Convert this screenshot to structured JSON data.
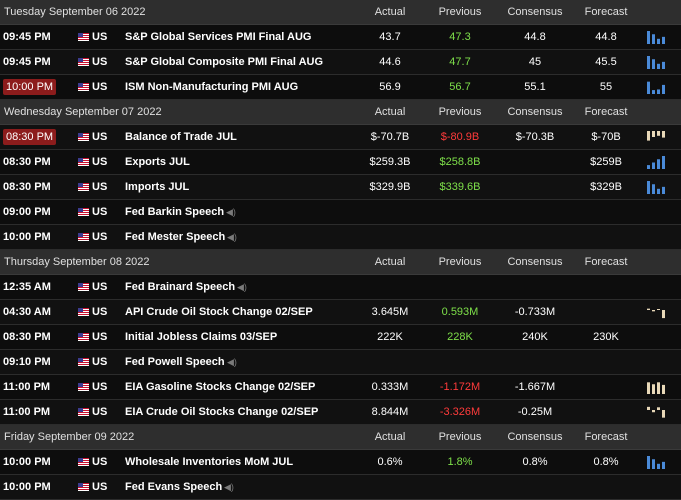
{
  "colors": {
    "header_bg": "#2e2e2e",
    "positive": "#7ee04a",
    "negative": "#ff3b3b",
    "highlight_time": "#8c1c1c",
    "bar_blue": "#4a8ad8",
    "bar_beige": "#e8d8b8"
  },
  "columns": {
    "actual": "Actual",
    "previous": "Previous",
    "consensus": "Consensus",
    "forecast": "Forecast"
  },
  "sections": [
    {
      "date": "Tuesday September 06 2022",
      "events": [
        {
          "time": "09:45 PM",
          "country": "US",
          "event": "S&P Global Services PMI Final AUG",
          "actual": "43.7",
          "previous": "47.3",
          "previous_color": "green",
          "consensus": "44.8",
          "forecast": "44.8",
          "chart": "blue-down",
          "speech": false,
          "highlight": false
        },
        {
          "time": "09:45 PM",
          "country": "US",
          "event": "S&P Global Composite PMI Final AUG",
          "actual": "44.6",
          "previous": "47.7",
          "previous_color": "green",
          "consensus": "45",
          "forecast": "45.5",
          "chart": "blue-down",
          "speech": false,
          "highlight": false
        },
        {
          "time": "10:00 PM",
          "country": "US",
          "event": "ISM Non-Manufacturing PMI AUG",
          "actual": "56.9",
          "previous": "56.7",
          "previous_color": "green",
          "consensus": "55.1",
          "forecast": "55",
          "chart": "blue-mixed",
          "speech": false,
          "highlight": true
        }
      ]
    },
    {
      "date": "Wednesday September 07 2022",
      "events": [
        {
          "time": "08:30 PM",
          "country": "US",
          "event": "Balance of Trade JUL",
          "actual": "$-70.7B",
          "previous": "$-80.9B",
          "previous_color": "red",
          "consensus": "$-70.3B",
          "forecast": "$-70B",
          "chart": "beige-neg",
          "speech": false,
          "highlight": true
        },
        {
          "time": "08:30 PM",
          "country": "US",
          "event": "Exports JUL",
          "actual": "$259.3B",
          "previous": "$258.8B",
          "previous_color": "green",
          "consensus": "",
          "forecast": "$259B",
          "chart": "blue-up",
          "speech": false,
          "highlight": false
        },
        {
          "time": "08:30 PM",
          "country": "US",
          "event": "Imports JUL",
          "actual": "$329.9B",
          "previous": "$339.6B",
          "previous_color": "green",
          "consensus": "",
          "forecast": "$329B",
          "chart": "blue-down",
          "speech": false,
          "highlight": false
        },
        {
          "time": "09:00 PM",
          "country": "US",
          "event": "Fed Barkin Speech",
          "actual": "",
          "previous": "",
          "previous_color": "",
          "consensus": "",
          "forecast": "",
          "chart": "",
          "speech": true,
          "highlight": false
        },
        {
          "time": "10:00 PM",
          "country": "US",
          "event": "Fed Mester Speech",
          "actual": "",
          "previous": "",
          "previous_color": "",
          "consensus": "",
          "forecast": "",
          "chart": "",
          "speech": true,
          "highlight": false
        }
      ]
    },
    {
      "date": "Thursday September 08 2022",
      "events": [
        {
          "time": "12:35 AM",
          "country": "US",
          "event": "Fed Brainard Speech",
          "actual": "",
          "previous": "",
          "previous_color": "",
          "consensus": "",
          "forecast": "",
          "chart": "",
          "speech": true,
          "highlight": false
        },
        {
          "time": "04:30 AM",
          "country": "US",
          "event": "API Crude Oil Stock Change 02/SEP",
          "actual": "3.645M",
          "previous": "0.593M",
          "previous_color": "green",
          "consensus": "-0.733M",
          "forecast": "",
          "chart": "beige-small",
          "speech": false,
          "highlight": false
        },
        {
          "time": "08:30 PM",
          "country": "US",
          "event": "Initial Jobless Claims 03/SEP",
          "actual": "222K",
          "previous": "228K",
          "previous_color": "green",
          "consensus": "240K",
          "forecast": "230K",
          "chart": "",
          "speech": false,
          "highlight": false
        },
        {
          "time": "09:10 PM",
          "country": "US",
          "event": "Fed Powell Speech",
          "actual": "",
          "previous": "",
          "previous_color": "",
          "consensus": "",
          "forecast": "",
          "chart": "",
          "speech": true,
          "highlight": false
        },
        {
          "time": "11:00 PM",
          "country": "US",
          "event": "EIA Gasoline Stocks Change 02/SEP",
          "actual": "0.333M",
          "previous": "-1.172M",
          "previous_color": "red",
          "consensus": "-1.667M",
          "forecast": "",
          "chart": "beige-pos",
          "speech": false,
          "highlight": false
        },
        {
          "time": "11:00 PM",
          "country": "US",
          "event": "EIA Crude Oil Stocks Change 02/SEP",
          "actual": "8.844M",
          "previous": "-3.326M",
          "previous_color": "red",
          "consensus": "-0.25M",
          "forecast": "",
          "chart": "beige-mixed",
          "speech": false,
          "highlight": false
        }
      ]
    },
    {
      "date": "Friday September 09 2022",
      "events": [
        {
          "time": "10:00 PM",
          "country": "US",
          "event": "Wholesale Inventories MoM JUL",
          "actual": "0.6%",
          "previous": "1.8%",
          "previous_color": "green",
          "consensus": "0.8%",
          "forecast": "0.8%",
          "chart": "blue-down",
          "speech": false,
          "highlight": false
        },
        {
          "time": "10:00 PM",
          "country": "US",
          "event": "Fed Evans Speech",
          "actual": "",
          "previous": "",
          "previous_color": "",
          "consensus": "",
          "forecast": "",
          "chart": "",
          "speech": true,
          "highlight": false
        }
      ]
    }
  ]
}
